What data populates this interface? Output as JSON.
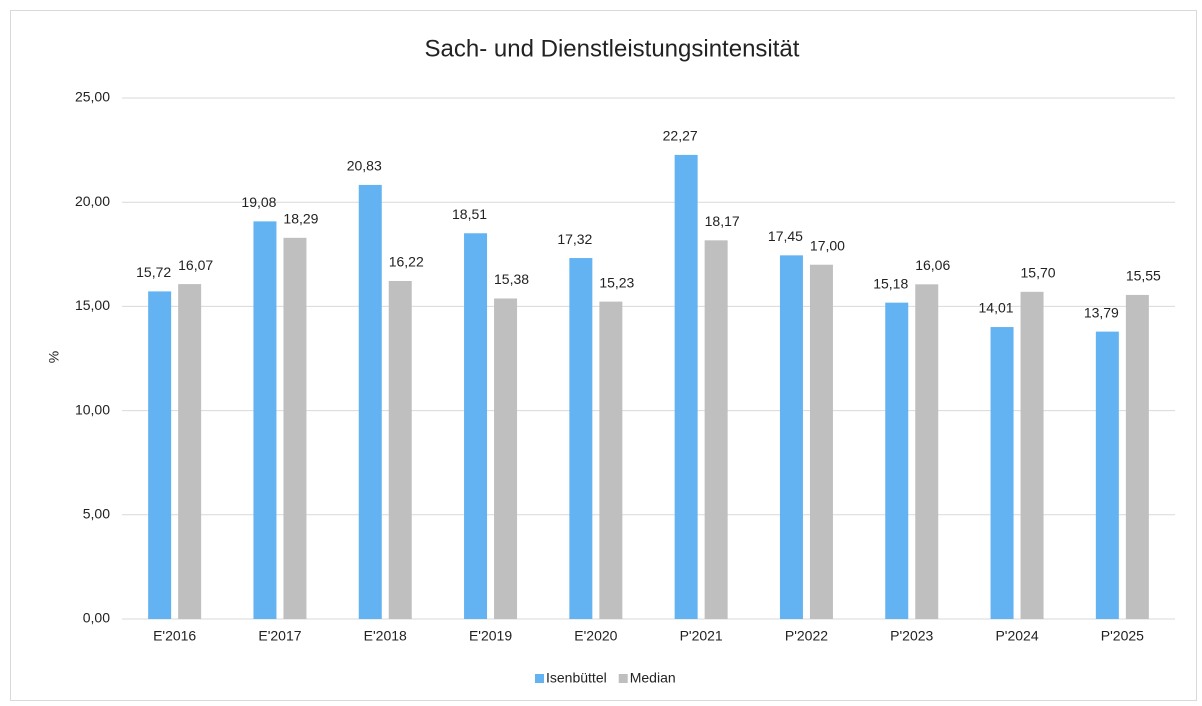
{
  "chart_data": {
    "type": "bar",
    "title": "Sach- und Dienstleistungsintensität",
    "y_label": "%",
    "categories": [
      "E'2016",
      "E'2017",
      "E'2018",
      "E'2019",
      "E'2020",
      "P'2021",
      "P'2022",
      "P'2023",
      "P'2024",
      "P'2025"
    ],
    "series": [
      {
        "name": "Isenbüttel",
        "color": "#63b3f2",
        "values": [
          15.72,
          19.08,
          20.83,
          18.51,
          17.32,
          22.27,
          17.45,
          15.18,
          14.01,
          13.79
        ],
        "value_labels": [
          "15,72",
          "19,08",
          "20,83",
          "18,51",
          "17,32",
          "22,27",
          "17,45",
          "15,18",
          "14,01",
          "13,79"
        ]
      },
      {
        "name": "Median",
        "color": "#bfbfbf",
        "values": [
          16.07,
          18.29,
          16.22,
          15.38,
          15.23,
          18.17,
          17.0,
          16.06,
          15.7,
          15.55
        ],
        "value_labels": [
          "16,07",
          "18,29",
          "16,22",
          "15,38",
          "15,23",
          "18,17",
          "17,00",
          "16,06",
          "15,70",
          "15,55"
        ]
      }
    ],
    "ylim": [
      0,
      25
    ],
    "yticks": [
      {
        "value": 0,
        "label": "0,00"
      },
      {
        "value": 5,
        "label": "5,00"
      },
      {
        "value": 10,
        "label": "10,00"
      },
      {
        "value": 15,
        "label": "15,00"
      },
      {
        "value": 20,
        "label": "20,00"
      },
      {
        "value": 25,
        "label": "25,00"
      }
    ],
    "grid": true,
    "legend": "bottom"
  }
}
